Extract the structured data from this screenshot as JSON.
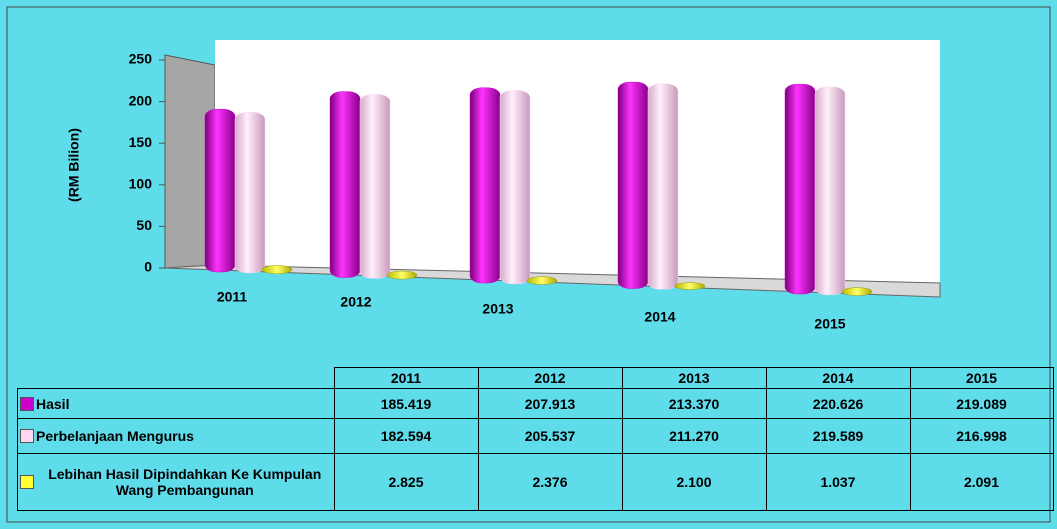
{
  "chart_data": {
    "type": "bar",
    "y_axis_label": "(RM Bilion)",
    "categories": [
      "2011",
      "2012",
      "2013",
      "2014",
      "2015"
    ],
    "series": [
      {
        "name": "Hasil",
        "color": "#cc00cc",
        "values": [
          185.419,
          207.913,
          213.37,
          220.626,
          219.089
        ],
        "value_labels": [
          "185.419",
          "207.913",
          "213.370",
          "220.626",
          "219.089"
        ]
      },
      {
        "name": "Perbelanjaan Mengurus",
        "color": "#ffd6f2",
        "values": [
          182.594,
          205.537,
          211.27,
          219.589,
          216.998
        ],
        "value_labels": [
          "182.594",
          "205.537",
          "211.270",
          "219.589",
          "216.998"
        ]
      },
      {
        "name": "Lebihan Hasil Dipindahkan Ke Kumpulan Wang Pembangunan",
        "color": "#ffff33",
        "values": [
          2.825,
          2.376,
          2.1,
          1.037,
          2.091
        ],
        "value_labels": [
          "2.825",
          "2.376",
          "2.100",
          "1.037",
          "2.091"
        ]
      }
    ],
    "ylim": [
      0,
      250
    ],
    "yticks": [
      0,
      50,
      100,
      150,
      200,
      250
    ]
  }
}
